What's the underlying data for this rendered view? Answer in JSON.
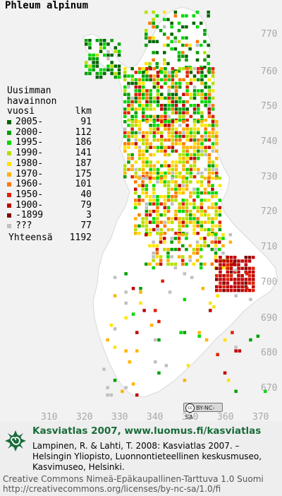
{
  "map": {
    "species": "Phleum alpinum",
    "legend": {
      "header": [
        "Uusimman",
        "havainnon",
        "vuosi"
      ],
      "count_header": "lkm",
      "items": [
        {
          "period": "2005-",
          "count": "91",
          "color": "#006400"
        },
        {
          "period": "2000-",
          "count": "112",
          "color": "#00a000"
        },
        {
          "period": "1995-",
          "count": "186",
          "color": "#00d800"
        },
        {
          "period": "1990-",
          "count": "141",
          "color": "#b4e000"
        },
        {
          "period": "1980-",
          "count": "187",
          "color": "#ffe400"
        },
        {
          "period": "1970-",
          "count": "175",
          "color": "#ffb400"
        },
        {
          "period": "1960-",
          "count": "101",
          "color": "#ff7800"
        },
        {
          "period": "1950-",
          "count": "40",
          "color": "#e02000"
        },
        {
          "period": "1900-",
          "count": "79",
          "color": "#c00000"
        },
        {
          "period": "-1899",
          "count": "3",
          "color": "#800000"
        },
        {
          "period": "???",
          "count": "77",
          "color": "#c0c0c0"
        }
      ],
      "total_label": "Yhteensä",
      "total_value": "1192"
    },
    "y_ticks": [
      "770",
      "760",
      "750",
      "740",
      "730",
      "720",
      "710",
      "700",
      "690",
      "680",
      "670"
    ],
    "x_ticks": [
      "310",
      "320",
      "330",
      "340",
      "350",
      "360",
      "370"
    ],
    "license_badge": "BY-NC-SA"
  },
  "footer": {
    "atlas_title": "Kasviatlas 2007, www.luomus.fi/kasviatlas",
    "citation": "Lampinen, R. & Lahti, T. 2008: Kasviatlas 2007. – Helsingin Yliopisto, Luonnontieteellinen keskusmuseo, Kasvimuseo, Helsinki.",
    "license_name": "Creative Commons Nimeä-Epäkaupallinen-Tarttuva 1.0 Suomi",
    "license_url": "http://creativecommons.org/licenses/by-nc-sa/1.0/fi"
  }
}
